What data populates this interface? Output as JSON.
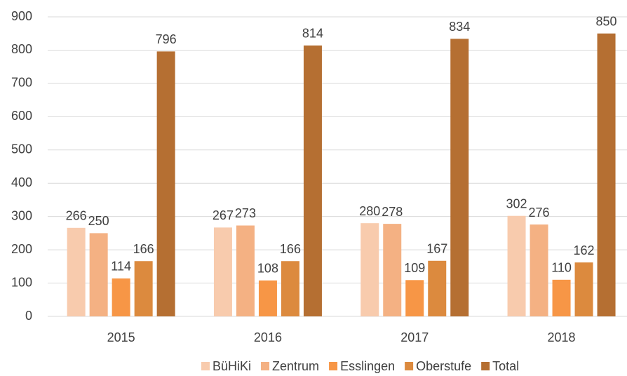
{
  "chart_data": {
    "type": "bar",
    "categories": [
      "2015",
      "2016",
      "2017",
      "2018"
    ],
    "series": [
      {
        "name": "BüHiKi",
        "color": "#f8cbad",
        "values": [
          266,
          267,
          280,
          302
        ]
      },
      {
        "name": "Zentrum",
        "color": "#f4b183",
        "values": [
          250,
          273,
          278,
          276
        ]
      },
      {
        "name": "Esslingen",
        "color": "#f79646",
        "values": [
          114,
          108,
          109,
          110
        ]
      },
      {
        "name": "Oberstufe",
        "color": "#dc8a3e",
        "values": [
          166,
          166,
          167,
          162
        ]
      },
      {
        "name": "Total",
        "color": "#b56f32",
        "values": [
          796,
          814,
          834,
          850
        ]
      }
    ],
    "ylim": [
      0,
      900
    ],
    "yticks": [
      0,
      100,
      200,
      300,
      400,
      500,
      600,
      700,
      800,
      900
    ],
    "grid": true,
    "legend": "bottom"
  }
}
